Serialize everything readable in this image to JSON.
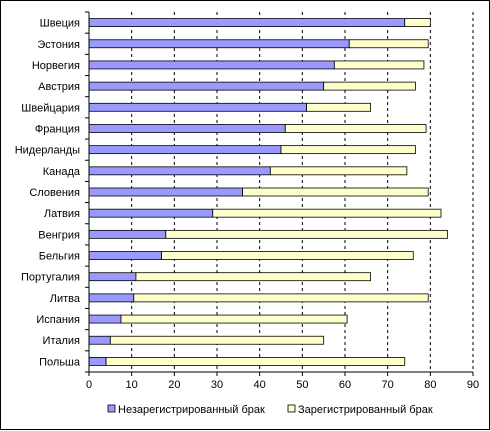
{
  "chart_data": {
    "type": "bar",
    "orientation": "horizontal",
    "stacked": true,
    "categories": [
      "Швеция",
      "Эстония",
      "Норвегия",
      "Австрия",
      "Швейцария",
      "Франция",
      "Нидерланды",
      "Канада",
      "Словения",
      "Латвия",
      "Венгрия",
      "Бельгия",
      "Португалия",
      "Литва",
      "Испания",
      "Италия",
      "Польша"
    ],
    "series": [
      {
        "name": "Незарегистрированный брак",
        "color": "#9999FF",
        "values": [
          74,
          61,
          57.5,
          55,
          51,
          46,
          45,
          42.5,
          36,
          29,
          18,
          17,
          11,
          10.5,
          7.5,
          5,
          4
        ]
      },
      {
        "name": "Зарегистрированный брак",
        "color": "#FFFFCC",
        "values": [
          6,
          18.5,
          21,
          21.5,
          15,
          33,
          31.5,
          32,
          43.5,
          53.5,
          66,
          59,
          55,
          69,
          53,
          50,
          70
        ]
      }
    ],
    "xlim": [
      0,
      90
    ],
    "xticks": [
      "0",
      "10",
      "20",
      "30",
      "40",
      "50",
      "60",
      "70",
      "80",
      "90"
    ],
    "grid": "vertical dashed",
    "legend_position": "bottom",
    "title": "",
    "xlabel": "",
    "ylabel": ""
  }
}
